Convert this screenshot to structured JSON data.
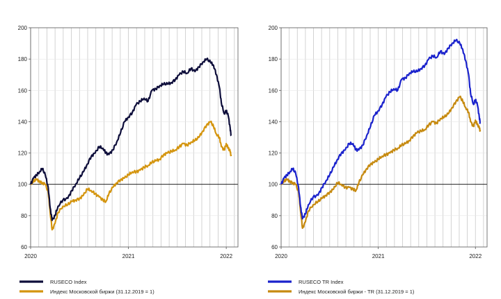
{
  "chart_data": [
    {
      "type": "line",
      "title": "",
      "xlabel": "",
      "ylabel": "",
      "ylim": [
        60,
        200
      ],
      "yticks": [
        60,
        80,
        100,
        120,
        140,
        160,
        180,
        200
      ],
      "xlim": [
        2020,
        2022.12
      ],
      "xticks": [
        {
          "value": 2020,
          "label": "2020"
        },
        {
          "value": 2021,
          "label": "2021"
        },
        {
          "value": 2022,
          "label": "2022"
        }
      ],
      "grid": true,
      "reference_line": 100,
      "legend_position": "bottom-left",
      "series": [
        {
          "name": "RUSECO Index",
          "color": "#0d0d3a",
          "points": [
            [
              2020.0,
              100
            ],
            [
              2020.03,
              104
            ],
            [
              2020.06,
              106
            ],
            [
              2020.09,
              108
            ],
            [
              2020.12,
              110
            ],
            [
              2020.15,
              106
            ],
            [
              2020.18,
              98
            ],
            [
              2020.2,
              85
            ],
            [
              2020.22,
              77
            ],
            [
              2020.25,
              80
            ],
            [
              2020.28,
              86
            ],
            [
              2020.33,
              90
            ],
            [
              2020.38,
              91
            ],
            [
              2020.42,
              96
            ],
            [
              2020.46,
              100
            ],
            [
              2020.5,
              104
            ],
            [
              2020.54,
              108
            ],
            [
              2020.58,
              113
            ],
            [
              2020.62,
              118
            ],
            [
              2020.66,
              120
            ],
            [
              2020.7,
              124
            ],
            [
              2020.74,
              123
            ],
            [
              2020.77,
              120
            ],
            [
              2020.8,
              119
            ],
            [
              2020.84,
              122
            ],
            [
              2020.88,
              127
            ],
            [
              2020.92,
              133
            ],
            [
              2020.96,
              140
            ],
            [
              2021.0,
              143
            ],
            [
              2021.04,
              146
            ],
            [
              2021.08,
              151
            ],
            [
              2021.12,
              153
            ],
            [
              2021.16,
              155
            ],
            [
              2021.2,
              153
            ],
            [
              2021.24,
              160
            ],
            [
              2021.28,
              161
            ],
            [
              2021.32,
              163
            ],
            [
              2021.36,
              164
            ],
            [
              2021.4,
              164
            ],
            [
              2021.44,
              165
            ],
            [
              2021.48,
              167
            ],
            [
              2021.52,
              170
            ],
            [
              2021.56,
              172
            ],
            [
              2021.6,
              171
            ],
            [
              2021.64,
              174
            ],
            [
              2021.68,
              172
            ],
            [
              2021.72,
              175
            ],
            [
              2021.76,
              178
            ],
            [
              2021.8,
              180
            ],
            [
              2021.84,
              178
            ],
            [
              2021.87,
              176
            ],
            [
              2021.9,
              170
            ],
            [
              2021.93,
              162
            ],
            [
              2021.95,
              152
            ],
            [
              2021.98,
              145
            ],
            [
              2022.0,
              147
            ],
            [
              2022.02,
              144
            ],
            [
              2022.04,
              136
            ],
            [
              2022.05,
              131
            ]
          ]
        },
        {
          "name": "Индекс Московской биржи (31.12.2019 = 1)",
          "color": "#d4950f",
          "points": [
            [
              2020.0,
              100
            ],
            [
              2020.03,
              102
            ],
            [
              2020.06,
              103
            ],
            [
              2020.09,
              102
            ],
            [
              2020.12,
              101
            ],
            [
              2020.15,
              100
            ],
            [
              2020.18,
              95
            ],
            [
              2020.2,
              82
            ],
            [
              2020.22,
              71
            ],
            [
              2020.25,
              75
            ],
            [
              2020.28,
              82
            ],
            [
              2020.33,
              86
            ],
            [
              2020.38,
              87
            ],
            [
              2020.42,
              89
            ],
            [
              2020.46,
              90
            ],
            [
              2020.5,
              91
            ],
            [
              2020.54,
              93
            ],
            [
              2020.58,
              97
            ],
            [
              2020.62,
              96
            ],
            [
              2020.66,
              94
            ],
            [
              2020.7,
              92
            ],
            [
              2020.74,
              90
            ],
            [
              2020.77,
              89
            ],
            [
              2020.8,
              94
            ],
            [
              2020.84,
              98
            ],
            [
              2020.88,
              101
            ],
            [
              2020.92,
              103
            ],
            [
              2020.96,
              104
            ],
            [
              2021.0,
              106
            ],
            [
              2021.04,
              108
            ],
            [
              2021.08,
              108
            ],
            [
              2021.12,
              109
            ],
            [
              2021.16,
              111
            ],
            [
              2021.2,
              112
            ],
            [
              2021.24,
              114
            ],
            [
              2021.28,
              115
            ],
            [
              2021.32,
              116
            ],
            [
              2021.36,
              119
            ],
            [
              2021.4,
              120
            ],
            [
              2021.44,
              121
            ],
            [
              2021.48,
              122
            ],
            [
              2021.52,
              124
            ],
            [
              2021.56,
              126
            ],
            [
              2021.6,
              125
            ],
            [
              2021.64,
              127
            ],
            [
              2021.68,
              128
            ],
            [
              2021.72,
              130
            ],
            [
              2021.76,
              134
            ],
            [
              2021.8,
              138
            ],
            [
              2021.84,
              140
            ],
            [
              2021.87,
              137
            ],
            [
              2021.9,
              132
            ],
            [
              2021.93,
              130
            ],
            [
              2021.95,
              124
            ],
            [
              2021.98,
              122
            ],
            [
              2022.0,
              126
            ],
            [
              2022.02,
              123
            ],
            [
              2022.04,
              121
            ],
            [
              2022.05,
              118
            ]
          ]
        }
      ]
    },
    {
      "type": "line",
      "title": "",
      "xlabel": "",
      "ylabel": "",
      "ylim": [
        60,
        200
      ],
      "yticks": [
        60,
        80,
        100,
        120,
        140,
        160,
        180,
        200
      ],
      "xlim": [
        2020,
        2022.12
      ],
      "xticks": [
        {
          "value": 2020,
          "label": "2020"
        },
        {
          "value": 2021,
          "label": "2021"
        },
        {
          "value": 2022,
          "label": "2022"
        }
      ],
      "grid": true,
      "reference_line": 100,
      "legend_position": "bottom-left",
      "series": [
        {
          "name": "RUSECO TR Index",
          "color": "#1a22cc",
          "points": [
            [
              2020.0,
              100
            ],
            [
              2020.03,
              104
            ],
            [
              2020.06,
              106
            ],
            [
              2020.09,
              108
            ],
            [
              2020.12,
              110
            ],
            [
              2020.15,
              107
            ],
            [
              2020.18,
              98
            ],
            [
              2020.2,
              86
            ],
            [
              2020.22,
              78
            ],
            [
              2020.25,
              81
            ],
            [
              2020.28,
              87
            ],
            [
              2020.33,
              92
            ],
            [
              2020.38,
              93
            ],
            [
              2020.42,
              98
            ],
            [
              2020.46,
              102
            ],
            [
              2020.5,
              106
            ],
            [
              2020.54,
              111
            ],
            [
              2020.58,
              116
            ],
            [
              2020.62,
              120
            ],
            [
              2020.66,
              122
            ],
            [
              2020.7,
              126
            ],
            [
              2020.74,
              126
            ],
            [
              2020.77,
              122
            ],
            [
              2020.8,
              122
            ],
            [
              2020.84,
              125
            ],
            [
              2020.88,
              131
            ],
            [
              2020.92,
              137
            ],
            [
              2020.96,
              144
            ],
            [
              2021.0,
              147
            ],
            [
              2021.04,
              151
            ],
            [
              2021.08,
              156
            ],
            [
              2021.12,
              159
            ],
            [
              2021.16,
              161
            ],
            [
              2021.2,
              160
            ],
            [
              2021.24,
              167
            ],
            [
              2021.28,
              168
            ],
            [
              2021.32,
              171
            ],
            [
              2021.36,
              172
            ],
            [
              2021.4,
              172
            ],
            [
              2021.44,
              174
            ],
            [
              2021.48,
              176
            ],
            [
              2021.52,
              180
            ],
            [
              2021.56,
              182
            ],
            [
              2021.6,
              181
            ],
            [
              2021.64,
              185
            ],
            [
              2021.68,
              183
            ],
            [
              2021.72,
              187
            ],
            [
              2021.76,
              190
            ],
            [
              2021.8,
              192
            ],
            [
              2021.84,
              190
            ],
            [
              2021.87,
              186
            ],
            [
              2021.9,
              179
            ],
            [
              2021.93,
              170
            ],
            [
              2021.95,
              158
            ],
            [
              2021.98,
              151
            ],
            [
              2022.0,
              154
            ],
            [
              2022.02,
              151
            ],
            [
              2022.04,
              143
            ],
            [
              2022.05,
              139
            ]
          ]
        },
        {
          "name": "Индекс Московской биржи - TR (31.12.2019 = 1)",
          "color": "#c68a10",
          "points": [
            [
              2020.0,
              100
            ],
            [
              2020.03,
              102
            ],
            [
              2020.06,
              103
            ],
            [
              2020.09,
              102
            ],
            [
              2020.12,
              101
            ],
            [
              2020.15,
              100
            ],
            [
              2020.18,
              95
            ],
            [
              2020.2,
              83
            ],
            [
              2020.22,
              72
            ],
            [
              2020.25,
              76
            ],
            [
              2020.28,
              83
            ],
            [
              2020.33,
              87
            ],
            [
              2020.38,
              89
            ],
            [
              2020.42,
              91
            ],
            [
              2020.46,
              93
            ],
            [
              2020.5,
              95
            ],
            [
              2020.54,
              97
            ],
            [
              2020.58,
              101
            ],
            [
              2020.62,
              100
            ],
            [
              2020.66,
              98
            ],
            [
              2020.7,
              98
            ],
            [
              2020.74,
              97
            ],
            [
              2020.77,
              96
            ],
            [
              2020.8,
              101
            ],
            [
              2020.84,
              106
            ],
            [
              2020.88,
              110
            ],
            [
              2020.92,
              113
            ],
            [
              2020.96,
              114
            ],
            [
              2021.0,
              116
            ],
            [
              2021.04,
              118
            ],
            [
              2021.08,
              119
            ],
            [
              2021.12,
              120
            ],
            [
              2021.16,
              122
            ],
            [
              2021.2,
              123
            ],
            [
              2021.24,
              125
            ],
            [
              2021.28,
              126
            ],
            [
              2021.32,
              128
            ],
            [
              2021.36,
              131
            ],
            [
              2021.4,
              133
            ],
            [
              2021.44,
              134
            ],
            [
              2021.48,
              135
            ],
            [
              2021.52,
              138
            ],
            [
              2021.56,
              140
            ],
            [
              2021.6,
              139
            ],
            [
              2021.64,
              142
            ],
            [
              2021.68,
              143
            ],
            [
              2021.72,
              145
            ],
            [
              2021.76,
              149
            ],
            [
              2021.8,
              153
            ],
            [
              2021.84,
              156
            ],
            [
              2021.87,
              153
            ],
            [
              2021.9,
              149
            ],
            [
              2021.93,
              146
            ],
            [
              2021.95,
              140
            ],
            [
              2021.98,
              137
            ],
            [
              2022.0,
              141
            ],
            [
              2022.02,
              138
            ],
            [
              2022.04,
              136
            ],
            [
              2022.05,
              134
            ]
          ]
        }
      ]
    }
  ],
  "colors": {
    "grid": "#c8c8c8",
    "axis": "#555555",
    "reference_line": "#000000"
  }
}
